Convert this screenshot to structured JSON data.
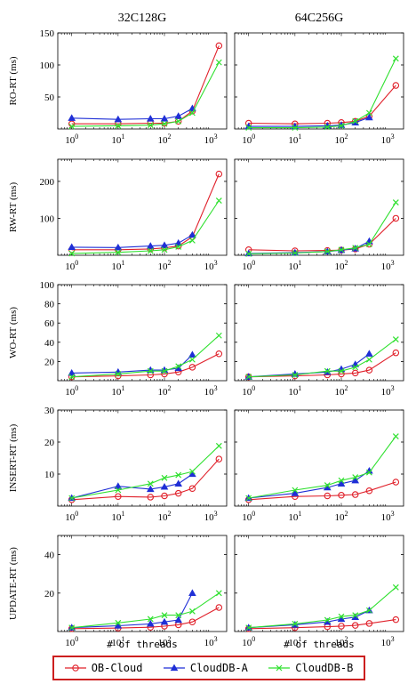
{
  "columns": [
    "32C128G",
    "64C256G"
  ],
  "xlabel": "# of threads",
  "legend": [
    {
      "name": "OB-Cloud",
      "color": "#e0202a",
      "marker": "circle"
    },
    {
      "name": "CloudDB-A",
      "color": "#1f2fd6",
      "marker": "triangle"
    },
    {
      "name": "CloudDB-B",
      "color": "#2fe02f",
      "marker": "x"
    }
  ],
  "chart_data": {
    "type": "line",
    "x": [
      1,
      10,
      50,
      100,
      200,
      400,
      1500
    ],
    "xscale": "log",
    "xlim": [
      0.5,
      2200
    ],
    "xticks": [
      {
        "v": 1,
        "label": "10^0"
      },
      {
        "v": 10,
        "label": "10^1"
      },
      {
        "v": 100,
        "label": "10^2"
      },
      {
        "v": 1000,
        "label": "10^3"
      }
    ],
    "rows": [
      {
        "ylabel": "RO-RT (ms)",
        "ylim": [
          0,
          150
        ],
        "yticks": [
          50,
          100,
          150
        ],
        "panels": [
          {
            "series": [
              {
                "name": "OB-Cloud",
                "values": [
                  8,
                  8,
                  9,
                  9,
                  12,
                  28,
                  130
                ]
              },
              {
                "name": "CloudDB-A",
                "values": [
                  17,
                  15,
                  16,
                  16,
                  20,
                  32,
                  null
                ]
              },
              {
                "name": "CloudDB-B",
                "values": [
                  4,
                  5,
                  6,
                  8,
                  12,
                  25,
                  104
                ]
              }
            ]
          },
          {
            "series": [
              {
                "name": "OB-Cloud",
                "values": [
                  9,
                  8,
                  9,
                  10,
                  12,
                  20,
                  68
                ]
              },
              {
                "name": "CloudDB-A",
                "values": [
                  4,
                  4,
                  5,
                  6,
                  10,
                  18,
                  null
                ]
              },
              {
                "name": "CloudDB-B",
                "values": [
                  2,
                  2,
                  3,
                  5,
                  12,
                  25,
                  110
                ]
              }
            ]
          }
        ]
      },
      {
        "ylabel": "RW-RT (ms)",
        "ylim": [
          0,
          260
        ],
        "yticks": [
          100,
          200
        ],
        "panels": [
          {
            "series": [
              {
                "name": "OB-Cloud",
                "values": [
                  15,
                  15,
                  17,
                  20,
                  25,
                  50,
                  220
                ]
              },
              {
                "name": "CloudDB-A",
                "values": [
                  22,
                  21,
                  25,
                  27,
                  33,
                  55,
                  null
                ]
              },
              {
                "name": "CloudDB-B",
                "values": [
                  5,
                  8,
                  12,
                  15,
                  23,
                  40,
                  148
                ]
              }
            ]
          },
          {
            "series": [
              {
                "name": "OB-Cloud",
                "values": [
                  15,
                  12,
                  13,
                  14,
                  17,
                  30,
                  100
                ]
              },
              {
                "name": "CloudDB-A",
                "values": [
                  5,
                  7,
                  10,
                  14,
                  18,
                  38,
                  null
                ]
              },
              {
                "name": "CloudDB-B",
                "values": [
                  4,
                  6,
                  10,
                  15,
                  20,
                  30,
                  143
                ]
              }
            ]
          }
        ]
      },
      {
        "ylabel": "WO-RT (ms)",
        "ylim": [
          0,
          100
        ],
        "yticks": [
          20,
          40,
          60,
          80,
          100
        ],
        "panels": [
          {
            "series": [
              {
                "name": "OB-Cloud",
                "values": [
                  4,
                  5,
                  6,
                  7,
                  9,
                  14,
                  28
                ]
              },
              {
                "name": "CloudDB-A",
                "values": [
                  8,
                  9,
                  11,
                  11,
                  13,
                  27,
                  null
                ]
              },
              {
                "name": "CloudDB-B",
                "values": [
                  4,
                  7,
                  10,
                  10,
                  15,
                  22,
                  47
                ]
              }
            ]
          },
          {
            "series": [
              {
                "name": "OB-Cloud",
                "values": [
                  4,
                  5,
                  6,
                  7,
                  8,
                  11,
                  29
                ]
              },
              {
                "name": "CloudDB-A",
                "values": [
                  4,
                  7,
                  9,
                  12,
                  17,
                  28,
                  null
                ]
              },
              {
                "name": "CloudDB-B",
                "values": [
                  4,
                  6,
                  10,
                  10,
                  14,
                  22,
                  43
                ]
              }
            ]
          }
        ]
      },
      {
        "ylabel": "INSERT-RT (ms)",
        "ylim": [
          0,
          30
        ],
        "yticks": [
          10,
          20,
          30
        ],
        "panels": [
          {
            "series": [
              {
                "name": "OB-Cloud",
                "values": [
                  2,
                  3,
                  2.8,
                  3.2,
                  4,
                  5.5,
                  14.7
                ]
              },
              {
                "name": "CloudDB-A",
                "values": [
                  2.5,
                  6.2,
                  5.3,
                  6,
                  7,
                  10,
                  null
                ]
              },
              {
                "name": "CloudDB-B",
                "values": [
                  2.5,
                  5,
                  7,
                  8.8,
                  9.7,
                  10.8,
                  18.8
                ]
              }
            ]
          },
          {
            "series": [
              {
                "name": "OB-Cloud",
                "values": [
                  2,
                  3,
                  3.2,
                  3.4,
                  3.6,
                  4.8,
                  7.5
                ]
              },
              {
                "name": "CloudDB-A",
                "values": [
                  2.5,
                  4,
                  5.8,
                  7,
                  8,
                  11,
                  null
                ]
              },
              {
                "name": "CloudDB-B",
                "values": [
                  2.5,
                  5,
                  6.5,
                  8,
                  9,
                  10.5,
                  21.8
                ]
              }
            ]
          }
        ]
      },
      {
        "ylabel": "UPDATE-RT (ms)",
        "ylim": [
          0,
          50
        ],
        "yticks": [
          20,
          40
        ],
        "panels": [
          {
            "series": [
              {
                "name": "OB-Cloud",
                "values": [
                  1.5,
                  1.8,
                  2.2,
                  2.8,
                  3.5,
                  5,
                  12.5
                ]
              },
              {
                "name": "CloudDB-A",
                "values": [
                  2,
                  3,
                  4,
                  5,
                  6,
                  20,
                  null
                ]
              },
              {
                "name": "CloudDB-B",
                "values": [
                  2,
                  4.5,
                  6.5,
                  8.5,
                  8.5,
                  10.5,
                  20
                ]
              }
            ]
          },
          {
            "series": [
              {
                "name": "OB-Cloud",
                "values": [
                  1.5,
                  2,
                  2.5,
                  2.8,
                  3.2,
                  4.2,
                  6.2
                ]
              },
              {
                "name": "CloudDB-A",
                "values": [
                  2,
                  3.5,
                  5,
                  6.5,
                  7.5,
                  11,
                  null
                ]
              },
              {
                "name": "CloudDB-B",
                "values": [
                  2,
                  4,
                  6,
                  7.8,
                  8.5,
                  11,
                  23
                ]
              }
            ]
          }
        ]
      }
    ]
  }
}
